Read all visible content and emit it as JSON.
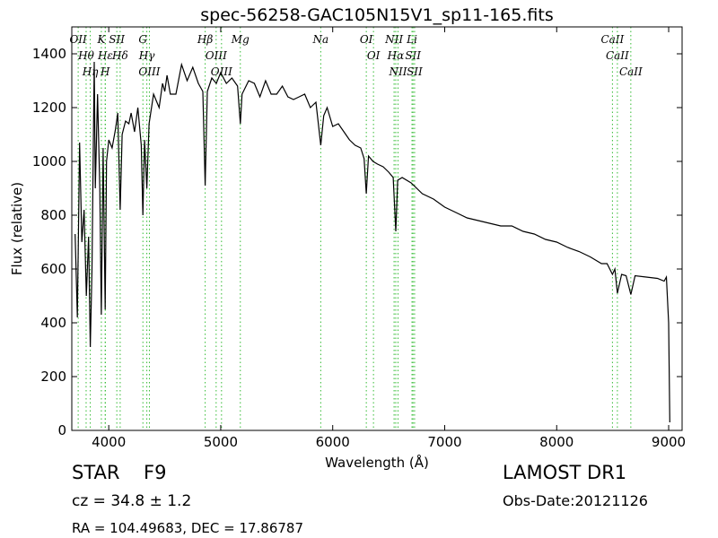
{
  "chart_data": {
    "type": "line",
    "title": "spec-56258-GAC105N15V1_sp11-165.fits",
    "xlabel": "Wavelength (Å)",
    "ylabel": "Flux (relative)",
    "xlim": [
      3670,
      9120
    ],
    "ylim": [
      0,
      1500
    ],
    "xticks": [
      4000,
      5000,
      6000,
      7000,
      8000,
      9000
    ],
    "yticks": [
      0,
      200,
      400,
      600,
      800,
      1000,
      1200,
      1400
    ],
    "x": [
      3700,
      3720,
      3740,
      3760,
      3780,
      3800,
      3820,
      3835,
      3850,
      3870,
      3880,
      3900,
      3920,
      3934,
      3950,
      3968,
      3980,
      4000,
      4030,
      4060,
      4080,
      4102,
      4120,
      4150,
      4180,
      4200,
      4230,
      4260,
      4290,
      4305,
      4320,
      4340,
      4360,
      4400,
      4450,
      4480,
      4500,
      4520,
      4550,
      4600,
      4650,
      4700,
      4750,
      4800,
      4840,
      4861,
      4880,
      4920,
      4960,
      5000,
      5050,
      5100,
      5150,
      5175,
      5190,
      5250,
      5300,
      5350,
      5400,
      5450,
      5500,
      5550,
      5600,
      5650,
      5700,
      5750,
      5800,
      5850,
      5893,
      5920,
      5950,
      6000,
      6050,
      6100,
      6150,
      6200,
      6250,
      6280,
      6300,
      6320,
      6360,
      6400,
      6450,
      6500,
      6540,
      6563,
      6580,
      6620,
      6700,
      6800,
      6900,
      7000,
      7100,
      7200,
      7300,
      7400,
      7500,
      7600,
      7700,
      7800,
      7900,
      8000,
      8100,
      8200,
      8300,
      8400,
      8450,
      8498,
      8520,
      8542,
      8580,
      8620,
      8662,
      8700,
      8800,
      8900,
      8960,
      8980,
      9000,
      9010
    ],
    "series": [
      {
        "color": "#000000",
        "values": [
          730,
          420,
          1070,
          700,
          820,
          500,
          720,
          310,
          600,
          1370,
          900,
          1250,
          900,
          430,
          1050,
          450,
          1000,
          1080,
          1050,
          1120,
          1180,
          820,
          1100,
          1150,
          1140,
          1180,
          1110,
          1200,
          1060,
          800,
          1080,
          900,
          1140,
          1250,
          1200,
          1290,
          1260,
          1320,
          1250,
          1250,
          1360,
          1300,
          1350,
          1290,
          1260,
          910,
          1260,
          1310,
          1290,
          1330,
          1290,
          1310,
          1280,
          1140,
          1250,
          1300,
          1290,
          1240,
          1300,
          1250,
          1250,
          1280,
          1240,
          1230,
          1240,
          1250,
          1200,
          1220,
          1060,
          1170,
          1200,
          1130,
          1140,
          1110,
          1080,
          1060,
          1050,
          1010,
          880,
          1020,
          1000,
          990,
          980,
          960,
          940,
          740,
          930,
          940,
          920,
          880,
          860,
          830,
          810,
          790,
          780,
          770,
          760,
          760,
          740,
          730,
          710,
          700,
          680,
          665,
          645,
          620,
          620,
          580,
          600,
          510,
          580,
          575,
          505,
          575,
          570,
          565,
          555,
          570,
          400,
          30
        ]
      }
    ],
    "line_color": "#33bb33",
    "lines": [
      {
        "label": "OII",
        "x": 3727
      },
      {
        "label": "Hθ",
        "x": 3798
      },
      {
        "label": "Hη",
        "x": 3835
      },
      {
        "label": "K",
        "x": 3934
      },
      {
        "label": "Hε",
        "x": 3970
      },
      {
        "label": "H",
        "x": 3968
      },
      {
        "label": "SII",
        "x": 4072
      },
      {
        "label": "Hδ",
        "x": 4102
      },
      {
        "label": "G",
        "x": 4305
      },
      {
        "label": "Hγ",
        "x": 4340
      },
      {
        "label": "OIII",
        "x": 4363
      },
      {
        "label": "Hβ",
        "x": 4861
      },
      {
        "label": "OIII",
        "x": 4959
      },
      {
        "label": "OIII",
        "x": 5007
      },
      {
        "label": "Mg",
        "x": 5175
      },
      {
        "label": "Na",
        "x": 5893
      },
      {
        "label": "OI",
        "x": 6300
      },
      {
        "label": "OI",
        "x": 6364
      },
      {
        "label": "NII",
        "x": 6548
      },
      {
        "label": "Hα",
        "x": 6563
      },
      {
        "label": "NII",
        "x": 6583
      },
      {
        "label": "Li",
        "x": 6708
      },
      {
        "label": "SII",
        "x": 6717
      },
      {
        "label": "SII",
        "x": 6731
      },
      {
        "label": "CaII",
        "x": 8498
      },
      {
        "label": "CaII",
        "x": 8542
      },
      {
        "label": "CaII",
        "x": 8662
      }
    ],
    "info": {
      "class": "STAR",
      "subclass": "F9",
      "survey": "LAMOST DR1",
      "cz": "cz = 34.8 ± 1.2",
      "obs_date": "Obs-Date:20121126",
      "coords": "RA = 104.49683, DEC = 17.86787"
    }
  }
}
